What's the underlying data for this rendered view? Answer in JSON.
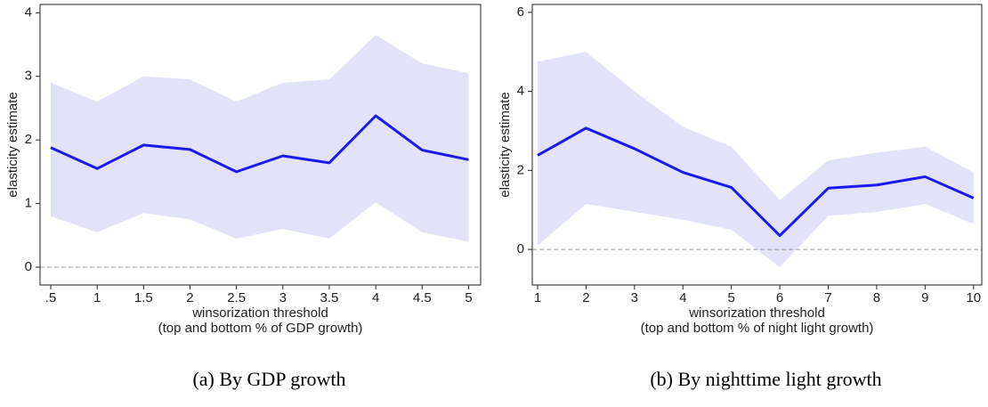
{
  "chart_data": [
    {
      "type": "line",
      "caption": "(a) By GDP growth",
      "ylabel": "elasticity estimate",
      "xlabel": [
        "winsorization threshold",
        "(top and bottom % of GDP growth)"
      ],
      "x": [
        0.5,
        1,
        1.5,
        2,
        2.5,
        3,
        3.5,
        4,
        4.5,
        5
      ],
      "values": [
        1.88,
        1.55,
        1.92,
        1.85,
        1.5,
        1.75,
        1.64,
        2.38,
        1.84,
        1.69
      ],
      "upper": [
        2.9,
        2.6,
        3.0,
        2.95,
        2.6,
        2.9,
        2.95,
        3.65,
        3.2,
        3.05
      ],
      "lower": [
        0.8,
        0.55,
        0.85,
        0.75,
        0.45,
        0.6,
        0.45,
        1.02,
        0.55,
        0.4
      ],
      "color": "#1a1aee",
      "band_color": "#e2e2f8",
      "hline": 0,
      "xlim": [
        0.385,
        5.13
      ],
      "ylim": [
        -0.28,
        4.13
      ],
      "xticks": [
        {
          "value": 0.5,
          "label": ".5"
        },
        1,
        1.5,
        2,
        2.5,
        3,
        3.5,
        4,
        4.5,
        5
      ],
      "yticks": [
        0,
        1,
        2,
        3,
        4
      ]
    },
    {
      "type": "line",
      "caption": "(b) By nighttime light growth",
      "ylabel": "elasticity estimate",
      "xlabel": [
        "winsorization threshold",
        "(top and bottom % of night light growth)"
      ],
      "x": [
        1,
        2,
        3,
        4,
        5,
        6,
        7,
        8,
        9,
        10
      ],
      "values": [
        2.38,
        3.07,
        2.55,
        1.95,
        1.57,
        0.35,
        1.55,
        1.63,
        1.84,
        1.3
      ],
      "upper": [
        4.75,
        5.0,
        4.0,
        3.1,
        2.6,
        1.25,
        2.25,
        2.45,
        2.6,
        1.95
      ],
      "lower": [
        0.1,
        1.15,
        0.95,
        0.75,
        0.5,
        -0.45,
        0.85,
        0.95,
        1.15,
        0.65
      ],
      "color": "#1a1aee",
      "band_color": "#e2e2f8",
      "hline": 0,
      "xlim": [
        0.89,
        10.17
      ],
      "ylim": [
        -0.9,
        6.2
      ],
      "xticks": [
        1,
        2,
        3,
        4,
        5,
        6,
        7,
        8,
        9,
        10
      ],
      "yticks": [
        0,
        2,
        4,
        6
      ]
    }
  ]
}
